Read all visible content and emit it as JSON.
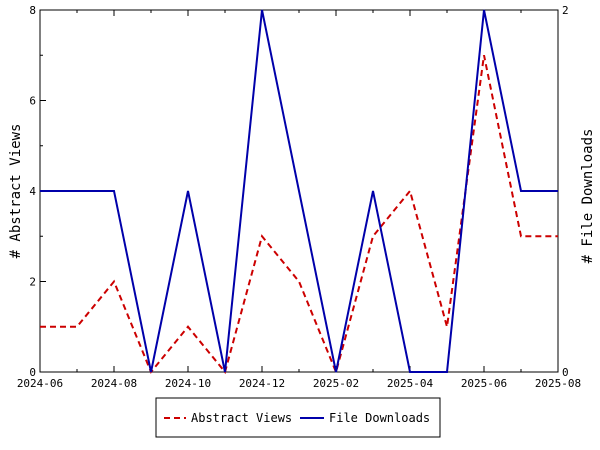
{
  "chart_data": {
    "type": "line",
    "x": [
      "2024-06",
      "2024-07",
      "2024-08",
      "2024-09",
      "2024-10",
      "2024-11",
      "2024-12",
      "2025-01",
      "2025-02",
      "2025-03",
      "2025-04",
      "2025-05",
      "2025-06",
      "2025-07",
      "2025-08"
    ],
    "xticks": [
      "2024-06",
      "2024-08",
      "2024-10",
      "2024-12",
      "2025-02",
      "2025-04",
      "2025-06",
      "2025-08"
    ],
    "ylabel": "# Abstract Views",
    "y2label": "# File Downloads",
    "ylim": [
      0,
      8
    ],
    "y2lim": [
      0,
      2
    ],
    "yticks": [
      "0",
      "2",
      "4",
      "6",
      "8"
    ],
    "y2ticks": [
      "0",
      "2"
    ],
    "grid": false,
    "legend_position": "bottom-center",
    "series": [
      {
        "name": "Abstract Views",
        "axis": "left",
        "color": "#cc0000",
        "style": "dashed",
        "values": [
          1,
          1,
          2,
          0,
          1,
          0,
          3,
          2,
          0,
          3,
          4,
          1,
          7,
          3,
          3
        ]
      },
      {
        "name": "File Downloads",
        "axis": "right",
        "color": "#0000aa",
        "style": "solid",
        "values": [
          1,
          1,
          1,
          0,
          1,
          0,
          2,
          1,
          0,
          1,
          0,
          0,
          2,
          1,
          1
        ]
      }
    ]
  }
}
